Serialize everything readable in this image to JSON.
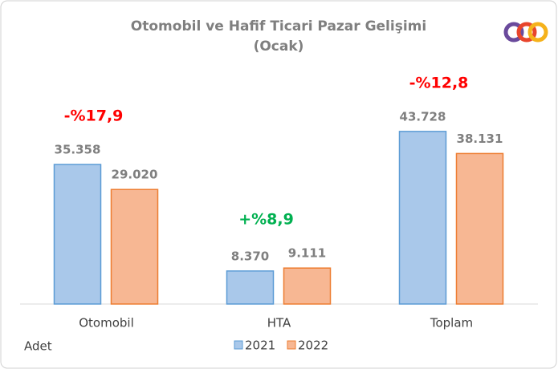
{
  "chart_data": {
    "type": "bar",
    "title": "Otomobil ve Hafif Ticari Pazar Gelişimi",
    "subtitle": "(Ocak)",
    "y_label": "Adet",
    "categories": [
      "Otomobil",
      "HTA",
      "Toplam"
    ],
    "series": [
      {
        "name": "2021",
        "color": "#a9c8ea",
        "edgecolor": "#5b9bd5",
        "values": [
          35358,
          8370,
          43728
        ],
        "value_labels": [
          "35.358",
          "8.370",
          "43.728"
        ]
      },
      {
        "name": "2022",
        "color": "#f7b793",
        "edgecolor": "#ed7d31",
        "values": [
          29020,
          9111,
          38131
        ],
        "value_labels": [
          "29.020",
          "9.111",
          "38.131"
        ]
      }
    ],
    "annotations": [
      {
        "text": "-%17,9",
        "color": "#ff0000"
      },
      {
        "text": "+%8,9",
        "color": "#00b050"
      },
      {
        "text": "-%12,8",
        "color": "#ff0000"
      }
    ],
    "ylim": [
      0,
      50000
    ],
    "grid": false,
    "legend": "bottom"
  }
}
